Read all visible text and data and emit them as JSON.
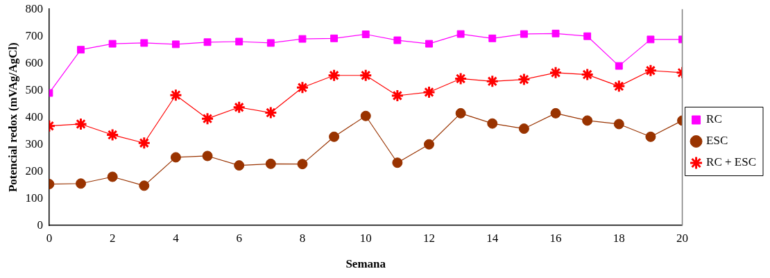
{
  "chart_data": {
    "type": "line",
    "xlabel": "Semana",
    "ylabel": "Potencial redox (mVAg/AgCl)",
    "x": [
      0,
      1,
      2,
      3,
      4,
      5,
      6,
      7,
      8,
      9,
      10,
      11,
      12,
      13,
      14,
      15,
      16,
      17,
      18,
      19,
      20
    ],
    "xlim": [
      0,
      20
    ],
    "xticks": [
      0,
      2,
      4,
      6,
      8,
      10,
      12,
      14,
      16,
      18,
      20
    ],
    "ylim": [
      0,
      800
    ],
    "yticks": [
      0,
      100,
      200,
      300,
      400,
      500,
      600,
      700,
      800
    ],
    "grid": false,
    "legend": "right",
    "line_style": "solid",
    "series": [
      {
        "name": "RC",
        "color": "#ff00ff",
        "marker": "square",
        "values": [
          490,
          650,
          672,
          675,
          670,
          678,
          680,
          675,
          690,
          692,
          707,
          685,
          672,
          708,
          692,
          708,
          710,
          700,
          590,
          688,
          688
        ]
      },
      {
        "name": "ESC",
        "color": "#993300",
        "marker": "circle",
        "values": [
          153,
          155,
          180,
          147,
          252,
          257,
          222,
          228,
          227,
          328,
          405,
          232,
          300,
          415,
          377,
          358,
          415,
          388,
          375,
          328,
          388
        ]
      },
      {
        "name": "RC + ESC",
        "color": "#ff0000",
        "marker": "cross",
        "values": [
          368,
          375,
          335,
          305,
          482,
          395,
          437,
          417,
          510,
          555,
          555,
          480,
          493,
          543,
          533,
          540,
          565,
          558,
          515,
          573,
          565
        ]
      }
    ]
  }
}
